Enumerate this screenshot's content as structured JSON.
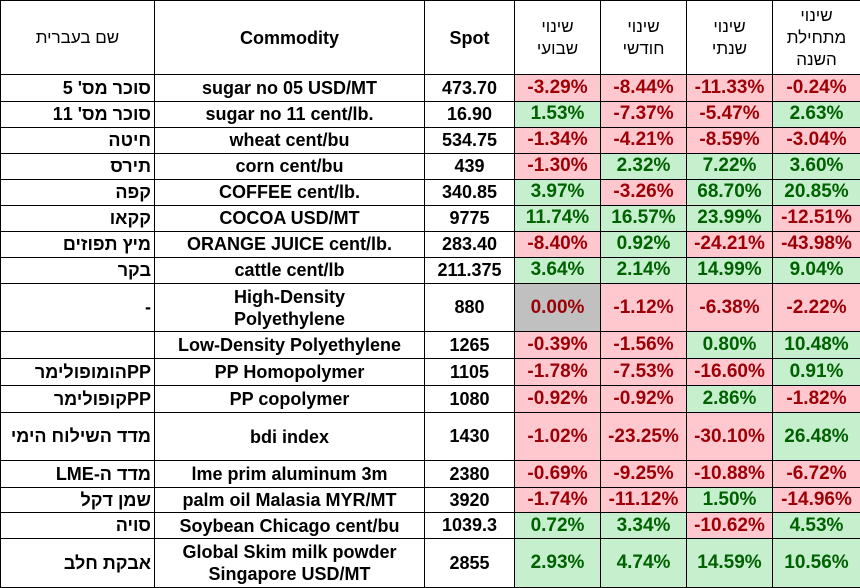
{
  "headers": {
    "hebrew_name": "שם בעברית",
    "commodity": "Commodity",
    "spot": "Spot",
    "weekly_line1": "שינוי",
    "weekly_line2": "שבועי",
    "monthly_line1": "שינוי",
    "monthly_line2": "חודשי",
    "yearly_line1": "שינוי",
    "yearly_line2": "שנתי",
    "ytd_line1": "שינוי",
    "ytd_line2": "מתחילת",
    "ytd_line3": "השנה"
  },
  "rows": [
    {
      "heb": "סוכר מס' 5",
      "name": [
        "sugar no 05 USD/MT"
      ],
      "spot": "473.70",
      "w": "-3.29%",
      "m": "-8.44%",
      "y": "-11.33%",
      "ytd": "-0.24%",
      "cls": [
        "neg",
        "neg",
        "neg",
        "neg"
      ]
    },
    {
      "heb": "סוכר מס' 11",
      "name": [
        "sugar no 11 cent/lb."
      ],
      "spot": "16.90",
      "w": "1.53%",
      "m": "-7.37%",
      "y": "-5.47%",
      "ytd": "2.63%",
      "cls": [
        "pos",
        "neg",
        "neg",
        "pos"
      ]
    },
    {
      "heb": "חיטה",
      "name": [
        "wheat cent/bu"
      ],
      "spot": "534.75",
      "w": "-1.34%",
      "m": "-4.21%",
      "y": "-8.59%",
      "ytd": "-3.04%",
      "cls": [
        "neg",
        "neg",
        "neg",
        "neg"
      ]
    },
    {
      "heb": "תירס",
      "name": [
        "corn cent/bu"
      ],
      "spot": "439",
      "w": "-1.30%",
      "m": "2.32%",
      "y": "7.22%",
      "ytd": "3.60%",
      "cls": [
        "neg",
        "pos",
        "pos",
        "pos"
      ]
    },
    {
      "heb": "קפה",
      "name": [
        "COFFEE cent/lb."
      ],
      "spot": "340.85",
      "w": "3.97%",
      "m": "-3.26%",
      "y": "68.70%",
      "ytd": "20.85%",
      "cls": [
        "pos",
        "neg",
        "pos",
        "pos"
      ]
    },
    {
      "heb": "קקאו",
      "name": [
        "COCOA USD/MT"
      ],
      "spot": "9775",
      "w": "11.74%",
      "m": "16.57%",
      "y": "23.99%",
      "ytd": "-12.51%",
      "cls": [
        "pos",
        "pos",
        "pos",
        "neg"
      ]
    },
    {
      "heb": "מיץ תפוזים",
      "name": [
        "ORANGE JUICE cent/lb."
      ],
      "spot": "283.40",
      "w": "-8.40%",
      "m": "0.92%",
      "y": "-24.21%",
      "ytd": "-43.98%",
      "cls": [
        "neg",
        "pos",
        "neg",
        "neg"
      ]
    },
    {
      "heb": "בקר",
      "name": [
        "cattle cent/lb"
      ],
      "spot": "211.375",
      "w": "3.64%",
      "m": "2.14%",
      "y": "14.99%",
      "ytd": "9.04%",
      "cls": [
        "pos",
        "pos",
        "pos",
        "pos"
      ]
    },
    {
      "heb": "-",
      "name": [
        "High-Density",
        "Polyethylene"
      ],
      "spot": "880",
      "w": "0.00%",
      "m": "-1.12%",
      "y": "-6.38%",
      "ytd": "-2.22%",
      "cls": [
        "zero",
        "neg",
        "neg",
        "neg"
      ]
    },
    {
      "heb": "",
      "name": [
        "Low-Density Polyethylene"
      ],
      "spot": "1265",
      "w": "-0.39%",
      "m": "-1.56%",
      "y": "0.80%",
      "ytd": "10.48%",
      "cls": [
        "neg",
        "neg",
        "pos",
        "pos"
      ]
    },
    {
      "heb": "PPהומופולימר",
      "name": [
        "PP Homopolymer"
      ],
      "spot": "1105",
      "w": "-1.78%",
      "m": "-7.53%",
      "y": "-16.60%",
      "ytd": "0.91%",
      "cls": [
        "neg",
        "neg",
        "neg",
        "pos"
      ]
    },
    {
      "heb": "PPקופולימר",
      "name": [
        "PP copolymer"
      ],
      "spot": "1080",
      "w": "-0.92%",
      "m": "-0.92%",
      "y": "2.86%",
      "ytd": "-1.82%",
      "cls": [
        "neg",
        "neg",
        "pos",
        "neg"
      ]
    },
    {
      "heb": "מדד השילוח הימי",
      "name": [
        "bdi index"
      ],
      "spot": "1430",
      "w": "-1.02%",
      "m": "-23.25%",
      "y": "-30.10%",
      "ytd": "26.48%",
      "cls": [
        "neg",
        "neg",
        "neg",
        "pos"
      ]
    },
    {
      "heb": "מדד ה-LME",
      "name": [
        "lme prim aluminum 3m"
      ],
      "spot": "2380",
      "w": "-0.69%",
      "m": "-9.25%",
      "y": "-10.88%",
      "ytd": "-6.72%",
      "cls": [
        "neg",
        "neg",
        "neg",
        "neg"
      ]
    },
    {
      "heb": "שמן דקל",
      "name": [
        "palm oil Malasia MYR/MT"
      ],
      "spot": "3920",
      "w": "-1.74%",
      "m": "-11.12%",
      "y": "1.50%",
      "ytd": "-14.96%",
      "cls": [
        "neg",
        "neg",
        "pos",
        "neg"
      ]
    },
    {
      "heb": "סויה",
      "name": [
        "Soybean Chicago cent/bu"
      ],
      "spot": "1039.3",
      "w": "0.72%",
      "m": "3.34%",
      "y": "-10.62%",
      "ytd": "4.53%",
      "cls": [
        "pos",
        "pos",
        "neg",
        "pos"
      ]
    },
    {
      "heb": "אבקת חלב",
      "name": [
        "Global Skim milk powder",
        "Singapore USD/MT"
      ],
      "spot": "2855",
      "w": "2.93%",
      "m": "4.74%",
      "y": "14.59%",
      "ytd": "10.56%",
      "cls": [
        "pos",
        "pos",
        "pos",
        "pos"
      ]
    }
  ]
}
